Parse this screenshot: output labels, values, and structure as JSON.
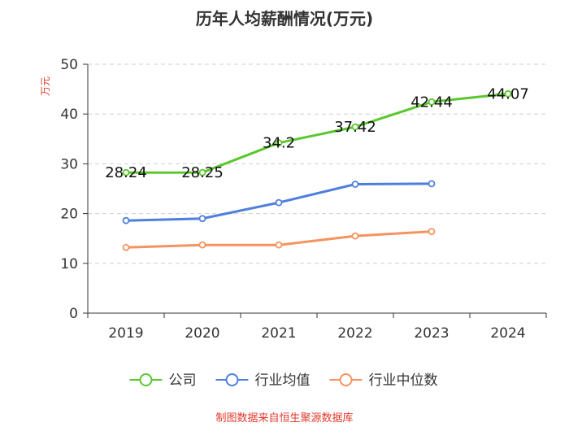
{
  "chart_data": {
    "type": "line",
    "title": "历年人均薪酬情况(万元)",
    "ylabel": "万元",
    "xlabel": "",
    "ylim": [
      0,
      50
    ],
    "yticks": [
      0,
      10,
      20,
      30,
      40,
      50
    ],
    "categories": [
      "2019",
      "2020",
      "2021",
      "2022",
      "2023",
      "2024"
    ],
    "grid": true,
    "legend_position": "bottom",
    "series": [
      {
        "name": "公司",
        "color": "#5bc72e",
        "values": [
          28.24,
          28.25,
          34.2,
          37.42,
          42.44,
          44.07
        ],
        "labels": [
          "28.24",
          "28.25",
          "34.2",
          "37.42",
          "42.44",
          "44.07"
        ]
      },
      {
        "name": "行业均值",
        "color": "#4f7fdc",
        "values": [
          18.6,
          19.0,
          22.2,
          25.9,
          26.0,
          null
        ]
      },
      {
        "name": "行业中位数",
        "color": "#f5935f",
        "values": [
          13.2,
          13.7,
          13.7,
          15.5,
          16.4,
          null
        ]
      }
    ],
    "source": "制图数据来自恒生聚源数据库"
  }
}
